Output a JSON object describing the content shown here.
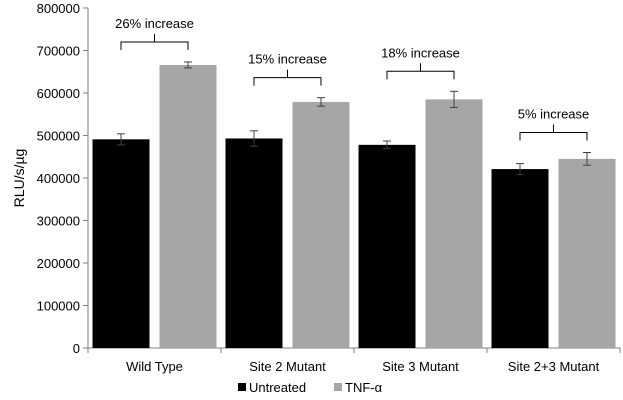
{
  "chart_data": {
    "type": "bar",
    "title": "",
    "xlabel": "",
    "ylabel": "RLU/s/µg",
    "ylim": [
      0,
      800000
    ],
    "yticks": [
      "0",
      "100000",
      "200000",
      "300000",
      "400000",
      "500000",
      "600000",
      "700000",
      "800000"
    ],
    "categories": [
      "Wild Type",
      "Site 2 Mutant",
      "Site 3 Mutant",
      "Site 2+3 Mutant"
    ],
    "series": [
      {
        "name": "Untreated",
        "color": "#000000",
        "values": [
          491000,
          493000,
          478000,
          421000
        ],
        "errors": [
          13000,
          18000,
          9000,
          13000
        ]
      },
      {
        "name": "TNF-α",
        "color": "#a6a6a6",
        "values": [
          666000,
          579000,
          585000,
          445000
        ],
        "errors": [
          7000,
          10000,
          19000,
          15000
        ]
      }
    ],
    "annotations": [
      "26% increase",
      "15% increase",
      "18% increase",
      "5% increase"
    ],
    "grid": false,
    "legend_position": "bottom-center"
  }
}
